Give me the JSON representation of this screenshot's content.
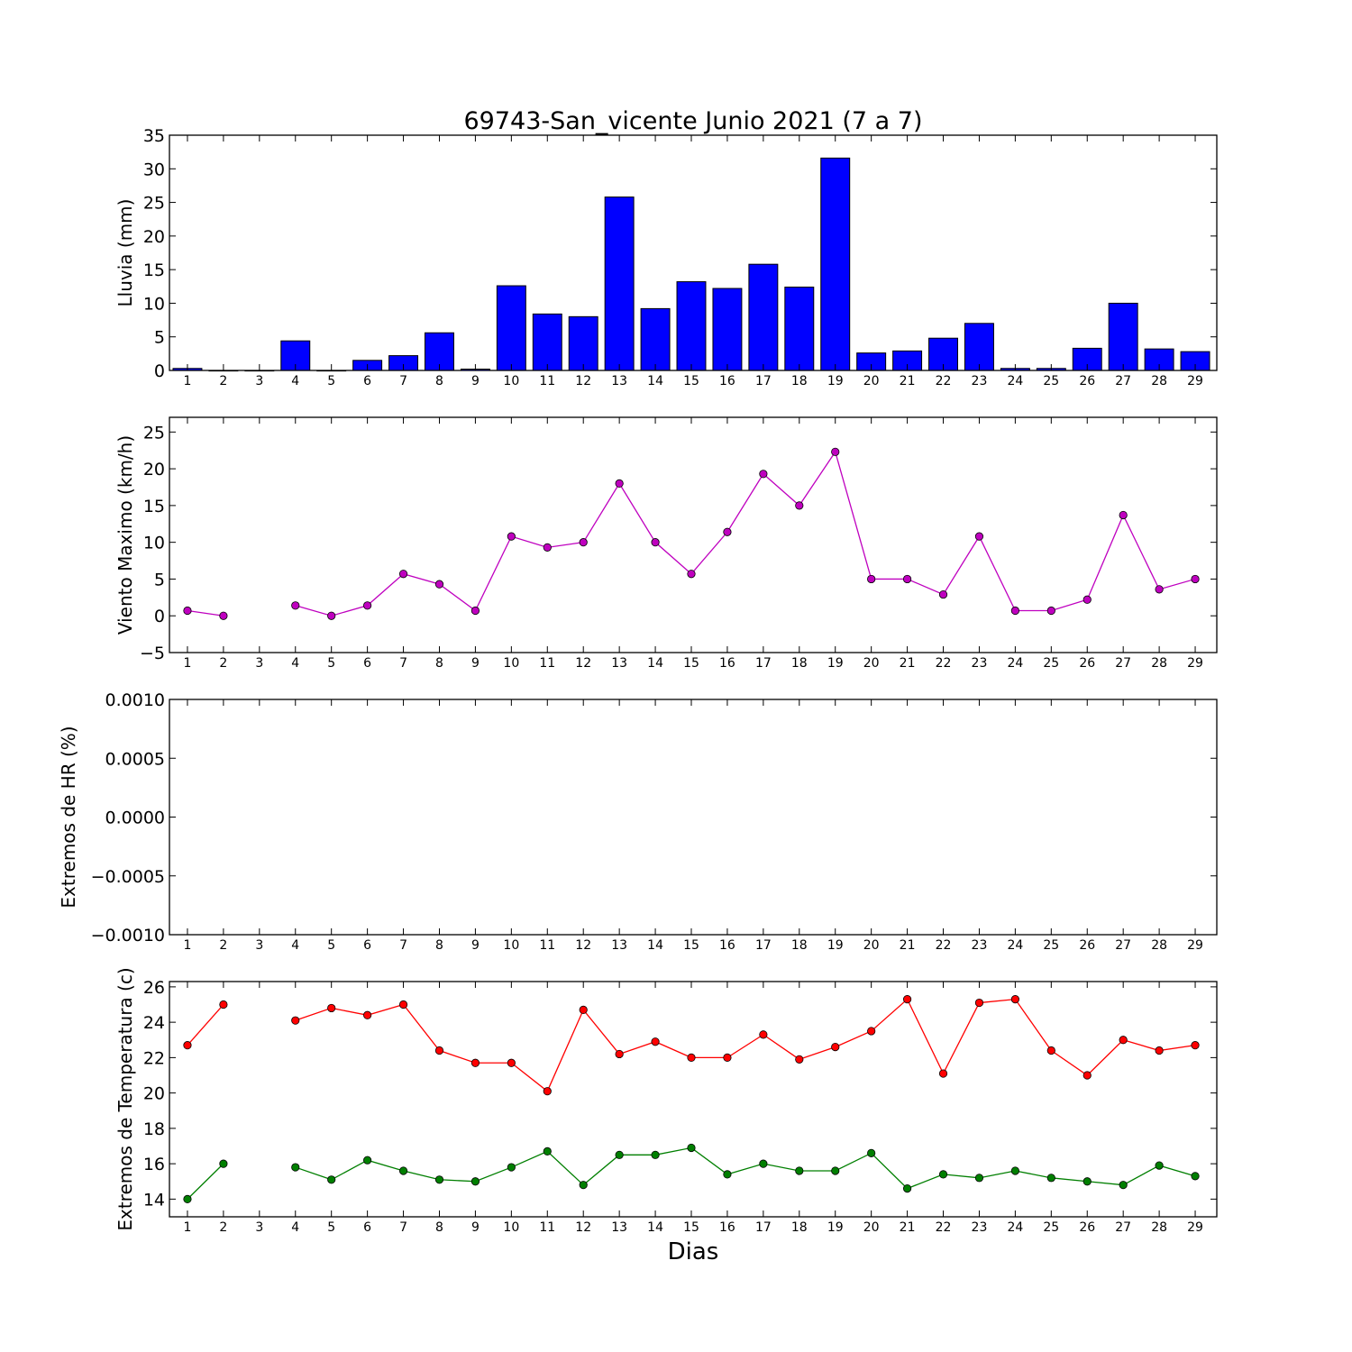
{
  "figure": {
    "title": "69743-San_vicente Junio 2021  (7 a 7)",
    "xlabel": "Dias"
  },
  "chart_data": [
    {
      "type": "bar",
      "ylabel": "Lluvia (mm)",
      "ylim": [
        0,
        35
      ],
      "yticks": [
        "0",
        "5",
        "10",
        "15",
        "20",
        "25",
        "30",
        "35"
      ],
      "categories": [
        "1",
        "2",
        "3",
        "4",
        "5",
        "6",
        "7",
        "8",
        "9",
        "10",
        "11",
        "12",
        "13",
        "14",
        "15",
        "16",
        "17",
        "18",
        "19",
        "20",
        "21",
        "22",
        "23",
        "24",
        "25",
        "26",
        "27",
        "28",
        "29"
      ],
      "values": [
        0.3,
        0,
        0,
        4.4,
        0,
        1.5,
        2.2,
        5.6,
        0.2,
        12.6,
        8.4,
        8.0,
        25.8,
        9.2,
        13.2,
        12.2,
        15.8,
        12.4,
        31.6,
        2.6,
        2.9,
        4.8,
        7.0,
        0.3,
        0.3,
        3.3,
        10.0,
        3.2,
        2.8
      ],
      "color": "#0000ff",
      "grid": false
    },
    {
      "type": "line",
      "ylabel": "Viento Maximo (km/h)",
      "ylim": [
        -5,
        27
      ],
      "yticks": [
        "−5",
        "0",
        "5",
        "10",
        "15",
        "20",
        "25"
      ],
      "categories": [
        "1",
        "2",
        "3",
        "4",
        "5",
        "6",
        "7",
        "8",
        "9",
        "10",
        "11",
        "12",
        "13",
        "14",
        "15",
        "16",
        "17",
        "18",
        "19",
        "20",
        "21",
        "22",
        "23",
        "24",
        "25",
        "26",
        "27",
        "28",
        "29"
      ],
      "series": [
        {
          "values": [
            0.7,
            0,
            null,
            1.4,
            0,
            1.4,
            5.7,
            4.3,
            0.7,
            10.8,
            9.3,
            10.0,
            18.0,
            10.0,
            5.7,
            11.4,
            19.3,
            15.0,
            22.3,
            5.0,
            5.0,
            2.9,
            10.8,
            0.7,
            0.7,
            2.2,
            13.7,
            3.6,
            5.0
          ],
          "color": "#bf00bf"
        }
      ],
      "grid": false
    },
    {
      "type": "line",
      "ylabel": "Extremos de HR (%)",
      "ylim": [
        -0.001,
        0.001
      ],
      "yticks": [
        "−0.0010",
        "−0.0005",
        "0.0000",
        "0.0005",
        "0.0010"
      ],
      "categories": [
        "1",
        "2",
        "3",
        "4",
        "5",
        "6",
        "7",
        "8",
        "9",
        "10",
        "11",
        "12",
        "13",
        "14",
        "15",
        "16",
        "17",
        "18",
        "19",
        "20",
        "21",
        "22",
        "23",
        "24",
        "25",
        "26",
        "27",
        "28",
        "29"
      ],
      "series": [],
      "grid": false
    },
    {
      "type": "line",
      "ylabel": "Extremos de Temperatura (c)",
      "ylim": [
        13,
        26.3
      ],
      "yticks": [
        "14",
        "16",
        "18",
        "20",
        "22",
        "24",
        "26"
      ],
      "categories": [
        "1",
        "2",
        "3",
        "4",
        "5",
        "6",
        "7",
        "8",
        "9",
        "10",
        "11",
        "12",
        "13",
        "14",
        "15",
        "16",
        "17",
        "18",
        "19",
        "20",
        "21",
        "22",
        "23",
        "24",
        "25",
        "26",
        "27",
        "28",
        "29"
      ],
      "series": [
        {
          "values": [
            22.7,
            25.0,
            null,
            24.1,
            24.8,
            24.4,
            25.0,
            22.4,
            21.7,
            21.7,
            20.1,
            24.7,
            22.2,
            22.9,
            22.0,
            22.0,
            23.3,
            21.9,
            22.6,
            23.5,
            25.3,
            21.1,
            25.1,
            25.3,
            22.4,
            21.0,
            23.0,
            22.4,
            22.7
          ],
          "color": "#ff0000"
        },
        {
          "values": [
            14.0,
            16.0,
            null,
            15.8,
            15.1,
            16.2,
            15.6,
            15.1,
            15.0,
            15.8,
            16.7,
            14.8,
            16.5,
            16.5,
            16.9,
            15.4,
            16.0,
            15.6,
            15.6,
            16.6,
            14.6,
            15.4,
            15.2,
            15.6,
            15.2,
            15.0,
            14.8,
            15.9,
            15.3
          ],
          "color": "#007f00"
        }
      ],
      "grid": false
    }
  ]
}
